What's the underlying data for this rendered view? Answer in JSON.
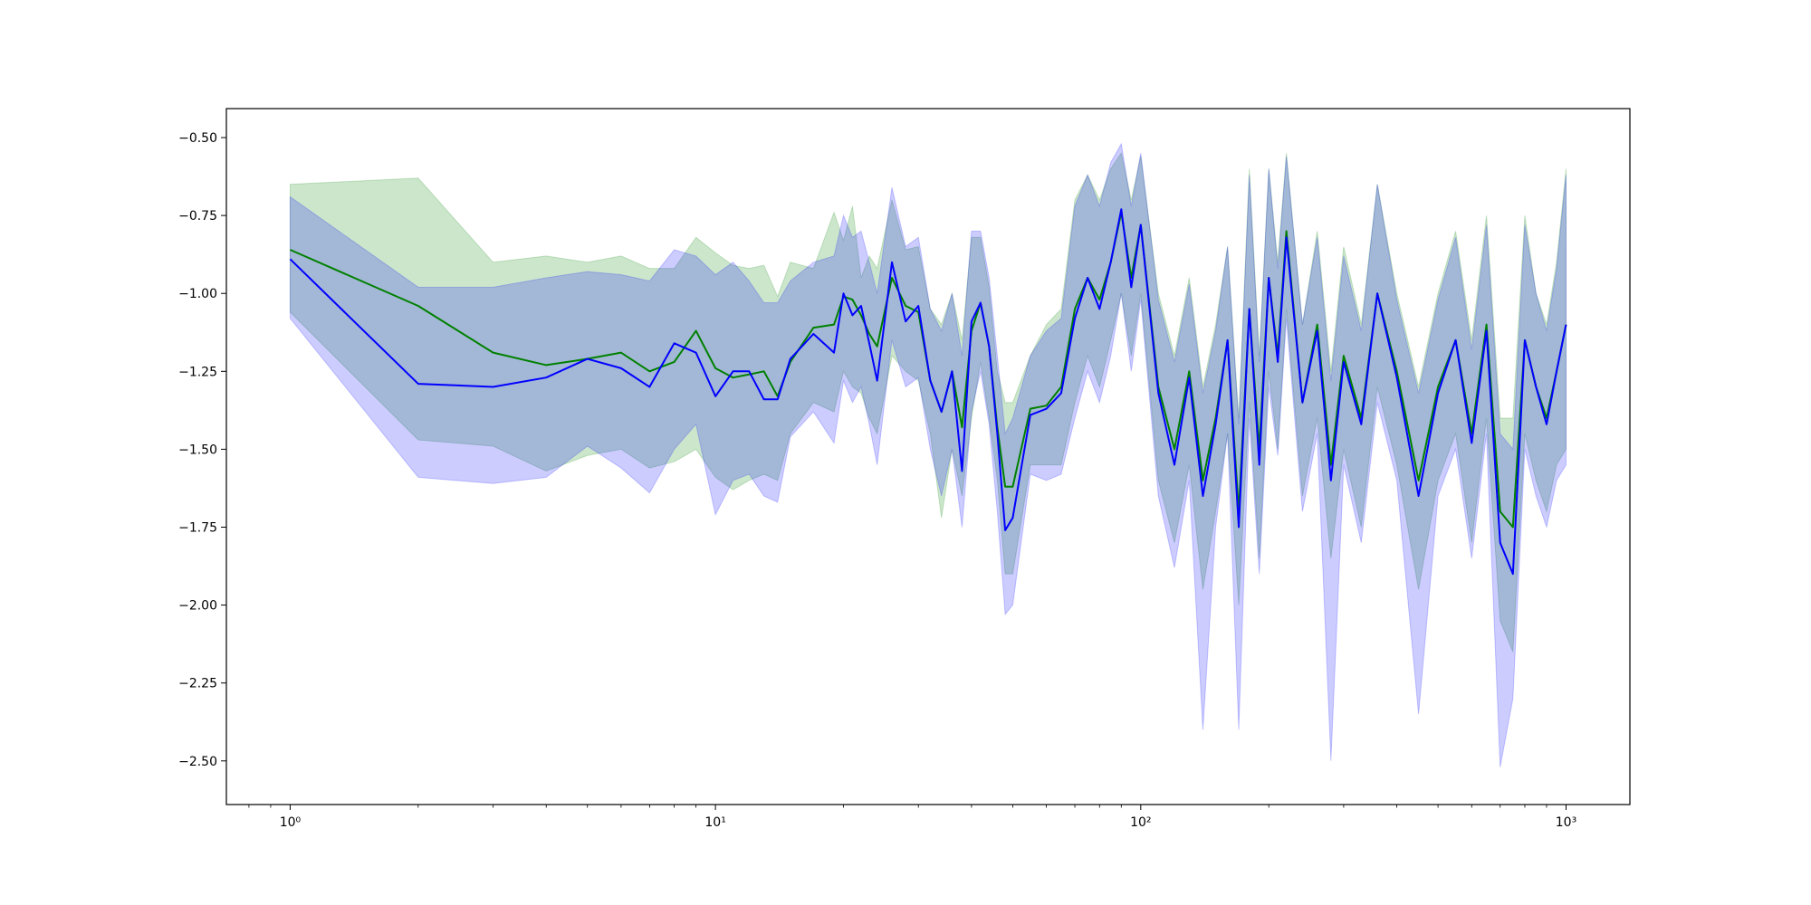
{
  "chart_data": {
    "type": "line",
    "xscale": "log",
    "x": [
      1,
      2,
      3,
      4,
      5,
      6,
      7,
      8,
      9,
      10,
      11,
      12,
      13,
      14,
      15,
      17,
      19,
      20,
      21,
      22,
      23,
      24,
      26,
      28,
      30,
      32,
      34,
      36,
      38,
      40,
      42,
      44,
      46,
      48,
      50,
      55,
      60,
      65,
      70,
      75,
      80,
      85,
      90,
      95,
      100,
      110,
      120,
      130,
      140,
      150,
      160,
      170,
      180,
      190,
      200,
      210,
      220,
      240,
      260,
      280,
      300,
      330,
      360,
      400,
      450,
      500,
      550,
      600,
      650,
      700,
      750,
      800,
      850,
      900,
      950,
      1000
    ],
    "series": [
      {
        "color": "#008000",
        "band_opacity": 0.2,
        "values": [
          -0.86,
          -1.04,
          -1.19,
          -1.23,
          -1.21,
          -1.19,
          -1.25,
          -1.22,
          -1.12,
          -1.24,
          -1.27,
          -1.26,
          -1.25,
          -1.33,
          -1.22,
          -1.11,
          -1.1,
          -1.01,
          -1.02,
          -1.07,
          -1.13,
          -1.17,
          -0.95,
          -1.04,
          -1.06,
          -1.28,
          -1.38,
          -1.25,
          -1.43,
          -1.12,
          -1.03,
          -1.17,
          -1.43,
          -1.62,
          -1.62,
          -1.37,
          -1.36,
          -1.3,
          -1.05,
          -0.95,
          -1.02,
          -0.9,
          -0.74,
          -0.95,
          -0.78,
          -1.3,
          -1.5,
          -1.25,
          -1.6,
          -1.4,
          -1.15,
          -1.7,
          -1.05,
          -1.5,
          -0.95,
          -1.2,
          -0.8,
          -1.35,
          -1.1,
          -1.55,
          -1.2,
          -1.4,
          -1.0,
          -1.25,
          -1.6,
          -1.3,
          -1.15,
          -1.45,
          -1.1,
          -1.7,
          -1.75,
          -1.15,
          -1.3,
          -1.4,
          -1.25,
          -1.1
        ],
        "upper": [
          -0.65,
          -0.63,
          -0.9,
          -0.88,
          -0.9,
          -0.88,
          -0.92,
          -0.92,
          -0.82,
          -0.87,
          -0.91,
          -0.92,
          -0.91,
          -1.01,
          -0.9,
          -0.92,
          -0.74,
          -0.83,
          -0.72,
          -0.95,
          -0.88,
          -0.92,
          -0.7,
          -0.86,
          -0.85,
          -1.05,
          -1.1,
          -1.0,
          -1.15,
          -0.82,
          -0.82,
          -0.98,
          -1.25,
          -1.35,
          -1.35,
          -1.2,
          -1.1,
          -1.05,
          -0.7,
          -0.62,
          -0.7,
          -0.6,
          -0.55,
          -0.7,
          -0.56,
          -1.0,
          -1.2,
          -0.95,
          -1.3,
          -1.1,
          -0.85,
          -1.4,
          -0.6,
          -1.2,
          -0.6,
          -0.9,
          -0.55,
          -1.1,
          -0.8,
          -1.25,
          -0.85,
          -1.1,
          -0.65,
          -1.0,
          -1.3,
          -1.0,
          -0.8,
          -1.15,
          -0.75,
          -1.4,
          -1.4,
          -0.75,
          -1.0,
          -1.1,
          -0.9,
          -0.6
        ],
        "lower": [
          -1.06,
          -1.47,
          -1.49,
          -1.57,
          -1.52,
          -1.5,
          -1.56,
          -1.54,
          -1.5,
          -1.59,
          -1.63,
          -1.6,
          -1.58,
          -1.6,
          -1.45,
          -1.35,
          -1.38,
          -1.25,
          -1.3,
          -1.32,
          -1.4,
          -1.45,
          -1.2,
          -1.25,
          -1.28,
          -1.45,
          -1.72,
          -1.5,
          -1.65,
          -1.4,
          -1.22,
          -1.4,
          -1.6,
          -1.9,
          -1.9,
          -1.55,
          -1.55,
          -1.55,
          -1.35,
          -1.2,
          -1.3,
          -1.15,
          -1.0,
          -1.2,
          -1.0,
          -1.6,
          -1.8,
          -1.55,
          -1.95,
          -1.7,
          -1.45,
          -2.0,
          -1.35,
          -1.85,
          -1.25,
          -1.5,
          -1.05,
          -1.65,
          -1.4,
          -1.85,
          -1.5,
          -1.75,
          -1.3,
          -1.55,
          -1.95,
          -1.6,
          -1.45,
          -1.8,
          -1.4,
          -2.05,
          -2.15,
          -1.45,
          -1.6,
          -1.7,
          -1.55,
          -1.5
        ]
      },
      {
        "color": "#0000ff",
        "band_opacity": 0.2,
        "values": [
          -0.89,
          -1.29,
          -1.3,
          -1.27,
          -1.21,
          -1.24,
          -1.3,
          -1.16,
          -1.19,
          -1.33,
          -1.25,
          -1.25,
          -1.34,
          -1.34,
          -1.21,
          -1.13,
          -1.19,
          -1.0,
          -1.07,
          -1.04,
          -1.16,
          -1.28,
          -0.9,
          -1.09,
          -1.04,
          -1.28,
          -1.38,
          -1.25,
          -1.57,
          -1.09,
          -1.03,
          -1.17,
          -1.45,
          -1.76,
          -1.72,
          -1.39,
          -1.37,
          -1.32,
          -1.08,
          -0.95,
          -1.05,
          -0.9,
          -0.73,
          -0.98,
          -0.78,
          -1.32,
          -1.55,
          -1.27,
          -1.65,
          -1.42,
          -1.15,
          -1.75,
          -1.05,
          -1.55,
          -0.95,
          -1.22,
          -0.82,
          -1.35,
          -1.12,
          -1.6,
          -1.22,
          -1.42,
          -1.0,
          -1.27,
          -1.65,
          -1.32,
          -1.15,
          -1.48,
          -1.12,
          -1.8,
          -1.9,
          -1.15,
          -1.3,
          -1.42,
          -1.25,
          -1.1
        ],
        "upper": [
          -0.69,
          -0.98,
          -0.98,
          -0.95,
          -0.93,
          -0.94,
          -0.96,
          -0.86,
          -0.88,
          -0.94,
          -0.9,
          -0.96,
          -1.03,
          -1.03,
          -0.96,
          -0.9,
          -0.88,
          -0.75,
          -0.82,
          -0.8,
          -0.9,
          -1.0,
          -0.66,
          -0.85,
          -0.82,
          -1.05,
          -1.12,
          -1.0,
          -1.2,
          -0.8,
          -0.8,
          -0.95,
          -1.2,
          -1.45,
          -1.4,
          -1.2,
          -1.12,
          -1.08,
          -0.72,
          -0.62,
          -0.72,
          -0.58,
          -0.52,
          -0.72,
          -0.55,
          -1.02,
          -1.22,
          -0.97,
          -1.32,
          -1.12,
          -0.85,
          -1.42,
          -0.62,
          -1.22,
          -0.6,
          -0.92,
          -0.56,
          -1.1,
          -0.82,
          -1.28,
          -0.88,
          -1.12,
          -0.65,
          -1.02,
          -1.32,
          -1.02,
          -0.82,
          -1.18,
          -0.78,
          -1.45,
          -1.5,
          -0.78,
          -1.0,
          -1.12,
          -0.92,
          -0.62
        ],
        "lower": [
          -1.08,
          -1.59,
          -1.61,
          -1.59,
          -1.49,
          -1.56,
          -1.64,
          -1.5,
          -1.42,
          -1.71,
          -1.6,
          -1.58,
          -1.65,
          -1.67,
          -1.46,
          -1.38,
          -1.48,
          -1.28,
          -1.35,
          -1.3,
          -1.42,
          -1.55,
          -1.15,
          -1.3,
          -1.27,
          -1.5,
          -1.65,
          -1.5,
          -1.75,
          -1.38,
          -1.25,
          -1.42,
          -1.7,
          -2.03,
          -2.0,
          -1.58,
          -1.6,
          -1.58,
          -1.4,
          -1.25,
          -1.35,
          -1.2,
          -1.0,
          -1.25,
          -1.02,
          -1.65,
          -1.88,
          -1.6,
          -2.4,
          -1.75,
          -1.45,
          -2.4,
          -1.4,
          -1.9,
          -1.3,
          -1.52,
          -1.08,
          -1.7,
          -1.45,
          -2.5,
          -1.55,
          -1.8,
          -1.35,
          -1.6,
          -2.35,
          -1.65,
          -1.5,
          -1.85,
          -1.45,
          -2.52,
          -2.3,
          -1.5,
          -1.65,
          -1.75,
          -1.6,
          -1.55
        ]
      }
    ],
    "xlim": [
      0.708,
      1413
    ],
    "xticks": [
      {
        "value": 1,
        "label": "10⁰"
      },
      {
        "value": 10,
        "label": "10¹"
      },
      {
        "value": 100,
        "label": "10²"
      },
      {
        "value": 1000,
        "label": "10³"
      }
    ],
    "xminorticks": [
      0.8,
      0.9,
      2,
      3,
      4,
      5,
      6,
      7,
      8,
      9,
      20,
      30,
      40,
      50,
      60,
      70,
      80,
      90,
      200,
      300,
      400,
      500,
      600,
      700,
      800,
      900
    ],
    "ylim": [
      -2.64,
      -0.407
    ],
    "yticks": [
      {
        "value": -0.5,
        "label": "−0.50"
      },
      {
        "value": -0.75,
        "label": "−0.75"
      },
      {
        "value": -1.0,
        "label": "−1.00"
      },
      {
        "value": -1.25,
        "label": "−1.25"
      },
      {
        "value": -1.5,
        "label": "−1.50"
      },
      {
        "value": -1.75,
        "label": "−1.75"
      },
      {
        "value": -2.0,
        "label": "−2.00"
      },
      {
        "value": -2.25,
        "label": "−2.25"
      },
      {
        "value": -2.5,
        "label": "−2.50"
      }
    ],
    "grid": false
  }
}
